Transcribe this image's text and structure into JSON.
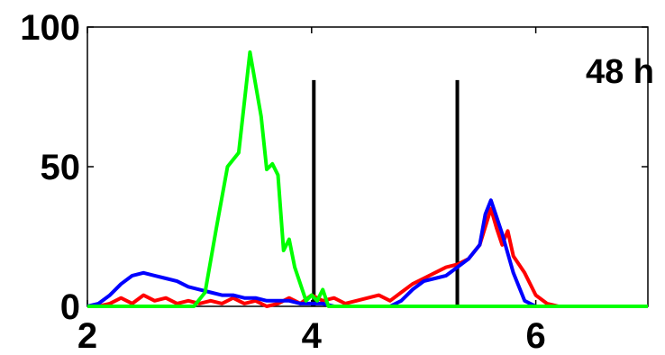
{
  "chart_data": {
    "type": "line",
    "title": "",
    "xlabel": "",
    "ylabel": "",
    "xlim": [
      2,
      7
    ],
    "ylim": [
      0,
      100
    ],
    "xticks": [
      2,
      4,
      6
    ],
    "yticks": [
      0,
      50,
      100
    ],
    "grid": false,
    "legend": "none",
    "annotations": [
      {
        "text": "48 h",
        "position": "top-right"
      }
    ],
    "vlines": [
      {
        "x": 4.02,
        "ymax": 81,
        "color": "#000000"
      },
      {
        "x": 5.3,
        "ymax": 81,
        "color": "#000000"
      }
    ],
    "series": [
      {
        "color": "#ff0000",
        "x": [
          2.0,
          2.1,
          2.2,
          2.3,
          2.4,
          2.5,
          2.6,
          2.7,
          2.8,
          2.9,
          3.0,
          3.1,
          3.2,
          3.3,
          3.4,
          3.5,
          3.6,
          3.7,
          3.8,
          3.9,
          4.0,
          4.1,
          4.2,
          4.3,
          4.4,
          4.5,
          4.6,
          4.7,
          4.8,
          4.9,
          5.0,
          5.1,
          5.2,
          5.3,
          5.4,
          5.5,
          5.6,
          5.65,
          5.7,
          5.75,
          5.8,
          5.9,
          6.0,
          6.1,
          6.2,
          6.4,
          6.6,
          6.8,
          7.0
        ],
        "y": [
          0,
          0,
          1,
          3,
          1,
          4,
          2,
          3,
          1,
          2,
          1,
          2,
          1,
          3,
          1,
          2,
          0,
          1,
          3,
          1,
          4,
          2,
          3,
          1,
          2,
          3,
          4,
          2,
          5,
          8,
          10,
          12,
          14,
          15,
          17,
          22,
          35,
          28,
          22,
          27,
          18,
          12,
          4,
          1,
          0,
          0,
          0,
          0,
          0
        ]
      },
      {
        "color": "#0000ff",
        "x": [
          2.0,
          2.1,
          2.2,
          2.3,
          2.4,
          2.5,
          2.6,
          2.7,
          2.8,
          2.9,
          3.0,
          3.1,
          3.2,
          3.3,
          3.4,
          3.5,
          3.6,
          3.7,
          3.8,
          3.9,
          4.0,
          4.1,
          4.2,
          4.3,
          4.4,
          4.5,
          4.6,
          4.7,
          4.8,
          4.9,
          5.0,
          5.1,
          5.2,
          5.3,
          5.4,
          5.5,
          5.55,
          5.6,
          5.65,
          5.7,
          5.8,
          5.9,
          6.0,
          6.2,
          6.4,
          6.6,
          6.8,
          7.0
        ],
        "y": [
          0,
          1,
          4,
          8,
          11,
          12,
          11,
          10,
          9,
          7,
          6,
          5,
          4,
          4,
          3,
          3,
          2,
          2,
          2,
          1,
          1,
          1,
          0,
          0,
          0,
          0,
          0,
          0,
          2,
          6,
          9,
          10,
          11,
          14,
          17,
          22,
          33,
          38,
          32,
          26,
          12,
          2,
          0,
          0,
          0,
          0,
          0,
          0
        ]
      },
      {
        "color": "#00ff00",
        "x": [
          2.0,
          2.2,
          2.4,
          2.6,
          2.8,
          2.95,
          3.05,
          3.15,
          3.25,
          3.35,
          3.45,
          3.55,
          3.6,
          3.65,
          3.7,
          3.75,
          3.8,
          3.85,
          3.95,
          4.0,
          4.05,
          4.1,
          4.15,
          4.2,
          4.4,
          4.6,
          4.8,
          5.0,
          5.2,
          5.4,
          5.6,
          5.8,
          6.0,
          6.2,
          6.4,
          6.6,
          6.8,
          7.0
        ],
        "y": [
          0,
          0,
          0,
          0,
          0,
          0,
          5,
          28,
          50,
          55,
          91,
          68,
          49,
          51,
          47,
          20,
          24,
          14,
          2,
          4,
          2,
          6,
          0,
          0,
          0,
          0,
          0,
          0,
          0,
          0,
          0,
          0,
          0,
          0,
          0,
          0,
          0,
          0
        ]
      }
    ]
  }
}
